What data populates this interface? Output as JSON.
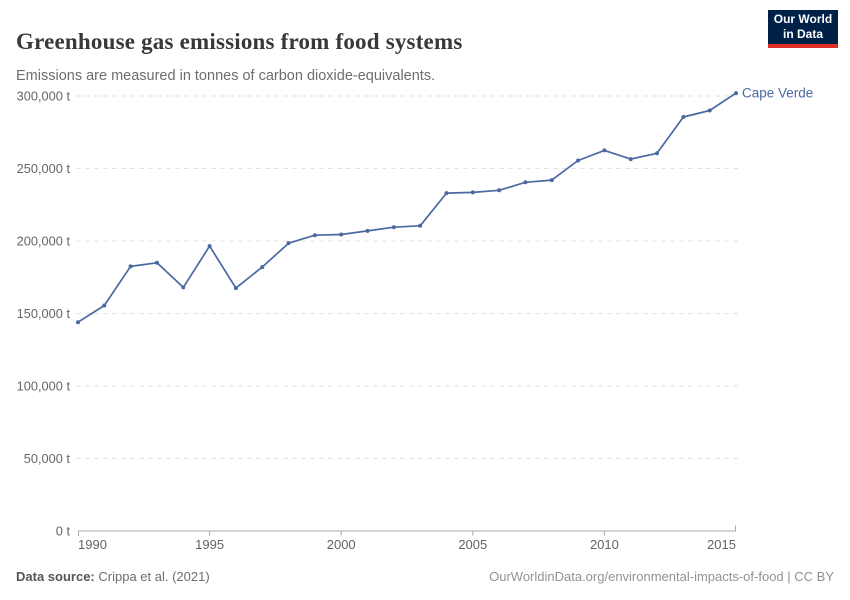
{
  "header": {
    "title": "Greenhouse gas emissions from food systems",
    "subtitle": "Emissions are measured in tonnes of carbon dioxide-equivalents.",
    "logo": {
      "line1": "Our World",
      "line2": "in Data"
    }
  },
  "chart_data": {
    "type": "line",
    "title": "Greenhouse gas emissions from food systems",
    "x": [
      1990,
      1991,
      1992,
      1993,
      1994,
      1995,
      1996,
      1997,
      1998,
      1999,
      2000,
      2001,
      2002,
      2003,
      2004,
      2005,
      2006,
      2007,
      2008,
      2009,
      2010,
      2011,
      2012,
      2013,
      2014,
      2015
    ],
    "series": [
      {
        "name": "Cape Verde",
        "color": "#4a69a2",
        "values": [
          144000,
          155500,
          182500,
          185000,
          168000,
          196500,
          167500,
          182000,
          198500,
          204000,
          204500,
          207000,
          209500,
          210500,
          233000,
          233500,
          235000,
          240500,
          242000,
          255500,
          262500,
          256500,
          260500,
          285500,
          290000,
          302000
        ]
      }
    ],
    "xlabel": "",
    "ylabel": "",
    "unit": "t",
    "xlim": [
      1990,
      2015
    ],
    "ylim": [
      0,
      300000
    ],
    "xticks": [
      1990,
      1995,
      2000,
      2005,
      2010,
      2015
    ],
    "yticks": [
      0,
      50000,
      100000,
      150000,
      200000,
      250000,
      300000
    ],
    "ytick_suffix": " t",
    "grid": "horizontal-dashed",
    "legend_position": "end-of-line-label"
  },
  "footer": {
    "source_label": "Data source:",
    "source_text": "Crippa et al. (2021)",
    "attribution": "OurWorldinData.org/environmental-impacts-of-food | CC BY"
  },
  "colors": {
    "line": "#4a69a2",
    "grid": "#e3e3e3",
    "axis": "#a8a8a8",
    "logo_bg": "#002147",
    "logo_accent": "#dc2e22"
  }
}
